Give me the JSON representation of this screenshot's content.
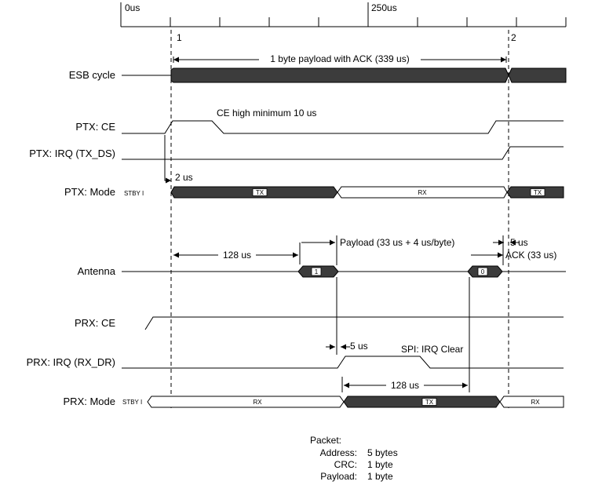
{
  "timeline": {
    "ticks": [
      "0us",
      "250us"
    ]
  },
  "markers": {
    "m1": "1",
    "m2": "2"
  },
  "rows": {
    "esb_cycle": "ESB cycle",
    "ptx_ce": "PTX: CE",
    "ptx_irq": "PTX: IRQ (TX_DS)",
    "ptx_mode": "PTX: Mode",
    "antenna": "Antenna",
    "prx_ce": "PRX: CE",
    "prx_irq": "PRX: IRQ (RX_DR)",
    "prx_mode": "PRX: Mode"
  },
  "states": {
    "stby": "STBY I",
    "tx": "TX",
    "rx": "RX",
    "pkt_1": "1",
    "pkt_0": "0"
  },
  "annotations": {
    "esb_cycle_length": "1 byte payload with ACK (339 us)",
    "ce_high_min": "CE high minimum 10 us",
    "two_us": "2 us",
    "tx_rx_delay": "128 us",
    "payload_time": "Payload (33 us + 4 us/byte)",
    "five_us_ack": "5 us",
    "ack_time": "ACK (33 us)",
    "five_us_irq": "5 us",
    "spi_irq_clear": "SPI: IRQ Clear",
    "prx_turnaround": "128 us"
  },
  "packet": {
    "title": "Packet:",
    "items": [
      {
        "label": "Address:",
        "value": "5 bytes"
      },
      {
        "label": "CRC:",
        "value": "1 byte"
      },
      {
        "label": "Payload:",
        "value": "1 byte"
      }
    ]
  }
}
